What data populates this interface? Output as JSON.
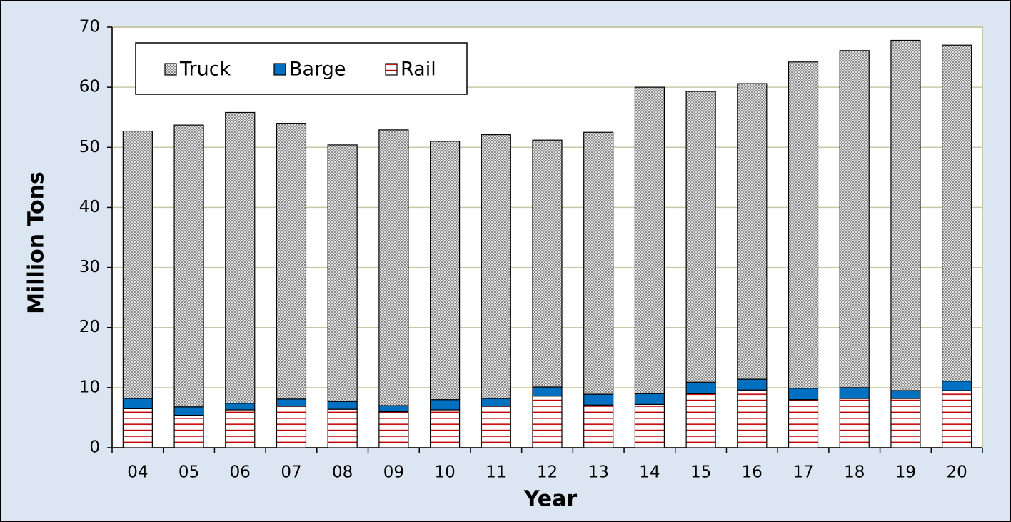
{
  "chart_data": {
    "type": "stacked-bar",
    "categories": [
      "04",
      "05",
      "06",
      "07",
      "08",
      "09",
      "10",
      "11",
      "12",
      "13",
      "14",
      "15",
      "16",
      "17",
      "18",
      "19",
      "20"
    ],
    "series": [
      {
        "name": "Truck",
        "color": "#8c8c8c",
        "pattern": "dots",
        "values": [
          44.5,
          46.9,
          48.4,
          45.9,
          42.7,
          45.9,
          43.0,
          43.9,
          41.1,
          43.6,
          51.0,
          48.4,
          49.2,
          54.3,
          56.1,
          58.3,
          55.9
        ]
      },
      {
        "name": "Barge",
        "color": "#0070c0",
        "pattern": "solid",
        "values": [
          1.7,
          1.4,
          1.1,
          1.2,
          1.3,
          1.0,
          1.7,
          1.3,
          1.5,
          1.8,
          1.8,
          1.9,
          1.8,
          1.9,
          1.8,
          1.3,
          1.6
        ]
      },
      {
        "name": "Rail",
        "color": "#c00000",
        "pattern": "stripes",
        "values": [
          6.5,
          5.4,
          6.3,
          6.9,
          6.4,
          6.0,
          6.3,
          6.9,
          8.6,
          7.1,
          7.2,
          9.0,
          9.6,
          8.0,
          8.2,
          8.2,
          9.5
        ]
      }
    ],
    "x_label": "Year",
    "y_label": "Million Tons",
    "ylim": [
      0,
      70
    ],
    "yticks": [
      0,
      10,
      20,
      30,
      40,
      50,
      60,
      70
    ],
    "grid": true
  }
}
